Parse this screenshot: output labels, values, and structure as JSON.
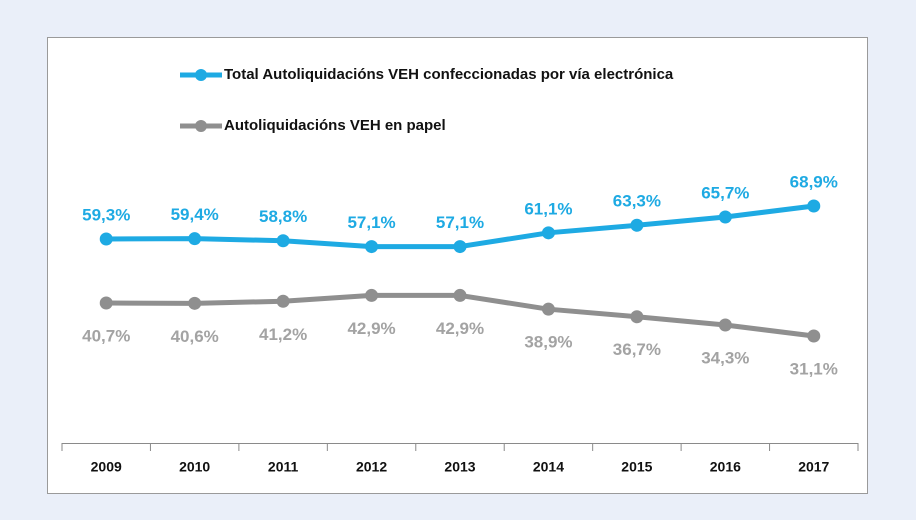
{
  "chart_data": {
    "type": "line",
    "categories": [
      "2009",
      "2010",
      "2011",
      "2012",
      "2013",
      "2014",
      "2015",
      "2016",
      "2017"
    ],
    "series": [
      {
        "name": "Total Autoliquidacións VEH confeccionadas por vía electrónica",
        "color": "#1eaae3",
        "values": [
          59.3,
          59.4,
          58.8,
          57.1,
          57.1,
          61.1,
          63.3,
          65.7,
          68.9
        ],
        "value_labels": [
          "59,3%",
          "59,4%",
          "58,8%",
          "57,1%",
          "57,1%",
          "61,1%",
          "63,3%",
          "65,7%",
          "68,9%"
        ]
      },
      {
        "name": "Autoliquidacións VEH  en papel",
        "color": "#8f8f8f",
        "values": [
          40.7,
          40.6,
          41.2,
          42.9,
          42.9,
          38.9,
          36.7,
          34.3,
          31.1
        ],
        "value_labels": [
          "40,7%",
          "40,6%",
          "41,2%",
          "42,9%",
          "42,9%",
          "38,9%",
          "36,7%",
          "34,3%",
          "31,1%"
        ]
      }
    ],
    "ylim": [
      0,
      100
    ]
  }
}
